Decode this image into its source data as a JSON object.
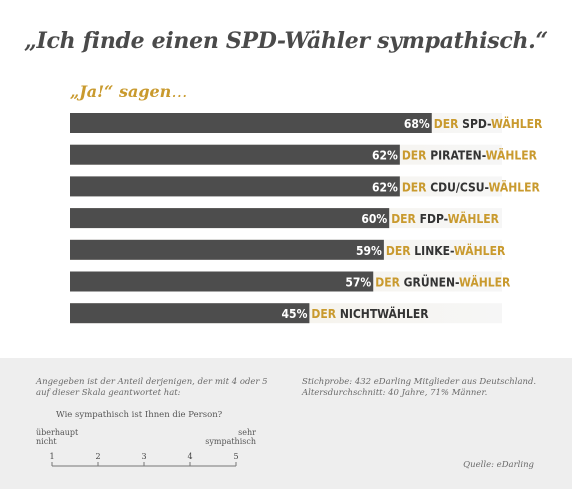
{
  "title": "„Ich finde einen SPD-Wähler sympathisch.“",
  "subtitle": "„Ja!“ sagen",
  "subtitle_dots": "…",
  "colors": {
    "bar": "#4d4d4d",
    "accent": "#c99a2e",
    "label": "#333333"
  },
  "chart_data": {
    "type": "bar",
    "orientation": "horizontal",
    "unit": "%",
    "xlim": [
      0,
      100
    ],
    "grid": false,
    "categories": [
      {
        "prefix": "DER ",
        "name": "SPD-",
        "suffix": "WÄHLER"
      },
      {
        "prefix": "DER ",
        "name": "PIRATEN-",
        "suffix": "WÄHLER"
      },
      {
        "prefix": "DER ",
        "name": "CDU/CSU-",
        "suffix": "WÄHLER"
      },
      {
        "prefix": "DER ",
        "name": "FDP-",
        "suffix": "WÄHLER"
      },
      {
        "prefix": "DER ",
        "name": "LINKE-",
        "suffix": "WÄHLER"
      },
      {
        "prefix": "DER ",
        "name": "GRÜNEN-",
        "suffix": "WÄHLER"
      },
      {
        "prefix": "DER ",
        "name": "NICHTWÄHLER",
        "suffix": ""
      }
    ],
    "values": [
      68,
      62,
      62,
      60,
      59,
      57,
      45
    ],
    "value_labels": [
      "68%",
      "62%",
      "62%",
      "60%",
      "59%",
      "57%",
      "45%"
    ]
  },
  "footer": {
    "note": "Angegeben ist der Anteil derjenigen, der mit 4 oder 5 auf dieser Skala geantwortet hat:",
    "sample": "Stichprobe: 432 eDarling Mitglieder aus Deutschland. Altersdurchschnitt: 40 Jahre, 71% Männer.",
    "scale_question": "Wie sympathisch ist Ihnen die Person?",
    "scale_low": "überhaupt nicht",
    "scale_high": "sehr sympathisch",
    "scale_ticks": [
      "1",
      "2",
      "3",
      "4",
      "5"
    ],
    "source": "Quelle: eDarling"
  }
}
